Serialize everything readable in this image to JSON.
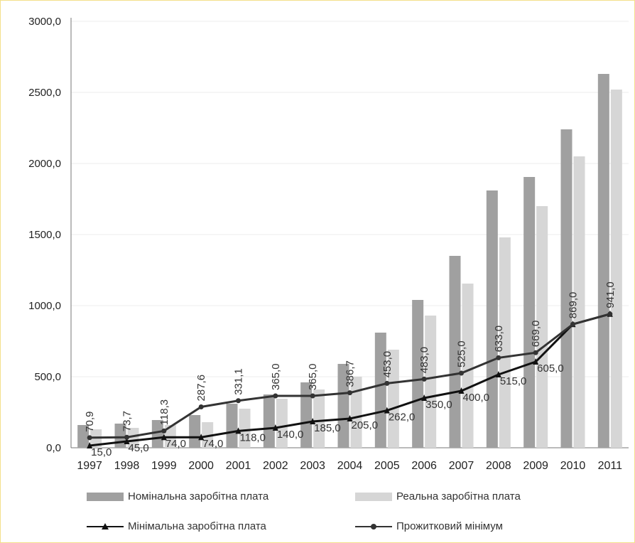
{
  "chart_data": {
    "type": "bar",
    "categories": [
      "1997",
      "1998",
      "1999",
      "2000",
      "2001",
      "2002",
      "2003",
      "2004",
      "2005",
      "2006",
      "2007",
      "2008",
      "2009",
      "2010",
      "2011"
    ],
    "ylim": [
      0,
      3000
    ],
    "yticks": [
      "0,0",
      "500,0",
      "1000,0",
      "1500,0",
      "2000,0",
      "2500,0",
      "3000,0"
    ],
    "ytick_values": [
      0,
      500,
      1000,
      1500,
      2000,
      2500,
      3000
    ],
    "grid": true,
    "legend_position": "bottom",
    "series": [
      {
        "name": "Номінальна заробітна плата",
        "kind": "bar",
        "color": "#a0a0a0",
        "values": [
          160,
          170,
          195,
          230,
          310,
          375,
          460,
          590,
          810,
          1040,
          1350,
          1810,
          1905,
          2240,
          2630
        ]
      },
      {
        "name": "Реальна заробітна плата",
        "kind": "bar",
        "color": "#d6d6d6",
        "values": [
          130,
          140,
          160,
          180,
          275,
          345,
          410,
          500,
          690,
          930,
          1155,
          1480,
          1700,
          2050,
          2520
        ]
      },
      {
        "name": "Мінімальна заробітна плата",
        "kind": "line",
        "marker": "triangle",
        "color": "#111111",
        "values": [
          15.0,
          45.0,
          74.0,
          74.0,
          118.0,
          140.0,
          185.0,
          205.0,
          262.0,
          350.0,
          400.0,
          515.0,
          605.0,
          869.0,
          941.0
        ],
        "labels": [
          "15,0",
          "45,0",
          "74,0",
          "74,0",
          "118,0",
          "140,0",
          "185,0",
          "205,0",
          "262,0",
          "350,0",
          "400,0",
          "515,0",
          "605,0",
          "",
          ""
        ]
      },
      {
        "name": "Прожитковий мінімум",
        "kind": "line",
        "marker": "circle",
        "color": "#333333",
        "values": [
          70.9,
          73.7,
          118.3,
          287.6,
          331.1,
          365.0,
          365.0,
          386.7,
          453.0,
          483.0,
          525.0,
          633.0,
          669.0,
          869.0,
          941.0
        ],
        "labels": [
          "70,9",
          "73,7",
          "118,3",
          "287,6",
          "331,1",
          "365,0",
          "365,0",
          "386,7",
          "453,0",
          "483,0",
          "525,0",
          "633,0",
          "669,0",
          "869,0",
          "941,0"
        ]
      }
    ]
  },
  "legend": {
    "nominal": "Номінальна заробітна плата",
    "real": "Реальна заробітна плата",
    "minimal": "Мінімальна заробітна плата",
    "subsistence": "Прожитковий мінімум"
  }
}
